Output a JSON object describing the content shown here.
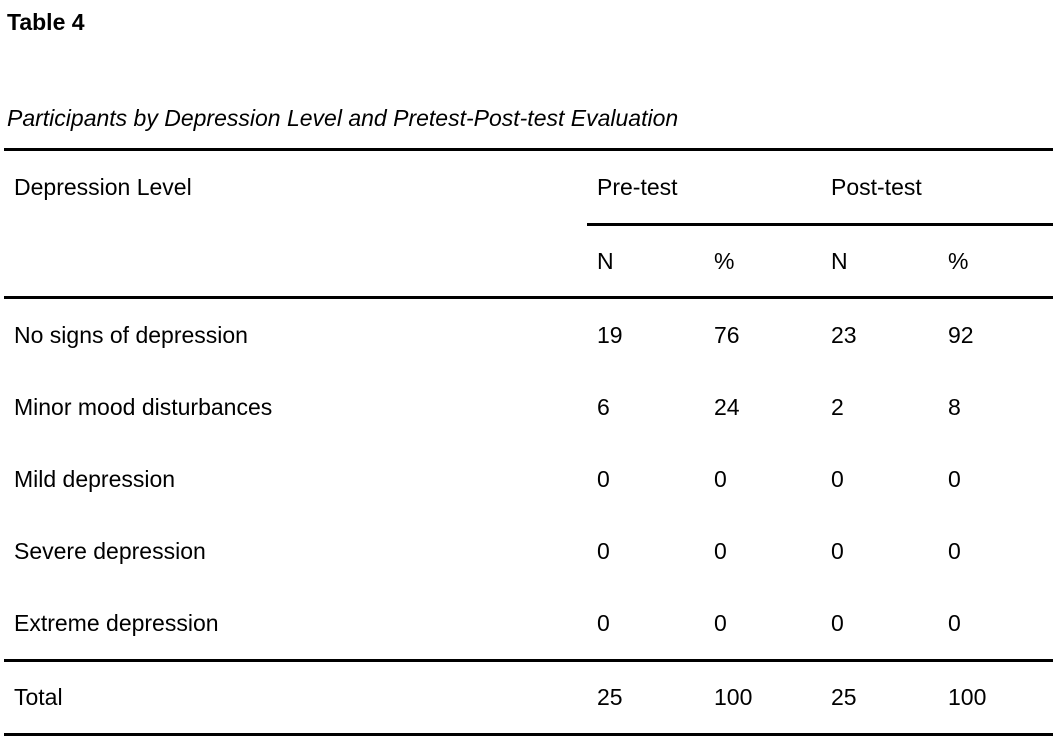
{
  "document": {
    "table_number": "Table 4",
    "caption": "Participants by Depression Level and Pretest-Post-test Evaluation"
  },
  "table": {
    "row_header_label": "Depression Level",
    "column_groups": [
      {
        "label": "Pre-test"
      },
      {
        "label": "Post-test"
      }
    ],
    "sub_headers": [
      "N",
      "%",
      "N",
      "%"
    ],
    "rows": [
      {
        "label": "No signs of depression",
        "values": [
          "19",
          "76",
          "23",
          "92"
        ]
      },
      {
        "label": "Minor mood disturbances",
        "values": [
          "6",
          "24",
          "2",
          "8"
        ]
      },
      {
        "label": "Mild depression",
        "values": [
          "0",
          "0",
          "0",
          "0"
        ]
      },
      {
        "label": "Severe depression",
        "values": [
          "0",
          "0",
          "0",
          "0"
        ]
      },
      {
        "label": "Extreme depression",
        "values": [
          "0",
          "0",
          "0",
          "0"
        ]
      }
    ],
    "total_row": {
      "label": "Total",
      "values": [
        "25",
        "100",
        "25",
        "100"
      ]
    }
  },
  "colors": {
    "text": "#000000",
    "rule": "#000000",
    "background": "#ffffff"
  }
}
